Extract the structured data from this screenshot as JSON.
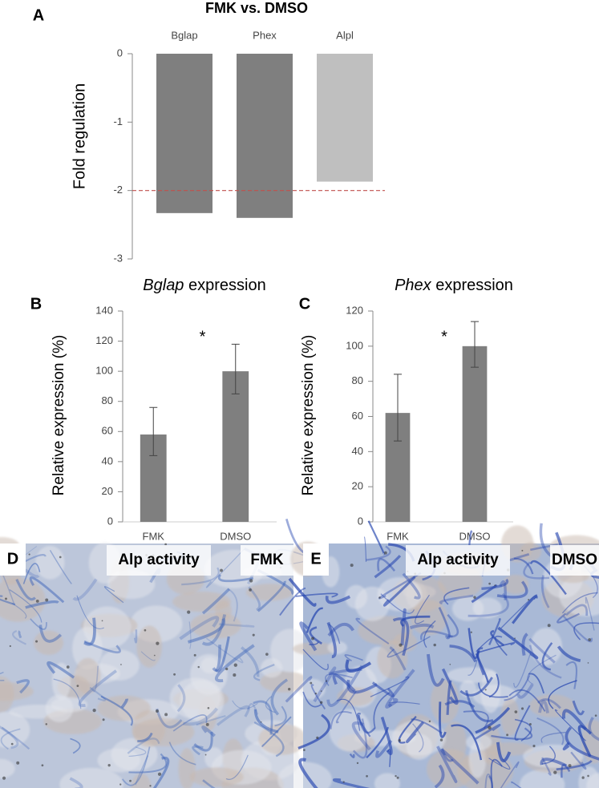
{
  "chart_data": [
    {
      "type": "bar",
      "panel": "A",
      "title": "FMK vs. DMSO",
      "ylabel": "Fold regulation",
      "categories": [
        "Bglap",
        "Phex",
        "Alpl"
      ],
      "values": [
        -2.33,
        -2.4,
        -1.87
      ],
      "colors": [
        "#7f7f7f",
        "#7f7f7f",
        "#bfbfbf"
      ],
      "threshold": -2,
      "threshold_color": "#c0504d",
      "ylim": [
        -3,
        0
      ],
      "yticks": [
        0,
        -1,
        -2,
        -3
      ]
    },
    {
      "type": "bar",
      "panel": "B",
      "title": "Bglap expression",
      "ylabel": "Relative expression (%)",
      "categories": [
        "FMK",
        "DMSO"
      ],
      "values": [
        58,
        100
      ],
      "error_low": [
        14,
        15
      ],
      "error_high": [
        18,
        18
      ],
      "color": "#7f7f7f",
      "annotation": "*",
      "ylim": [
        0,
        140
      ],
      "yticks": [
        0,
        20,
        40,
        60,
        80,
        100,
        120,
        140
      ]
    },
    {
      "type": "bar",
      "panel": "C",
      "title": "Phex expression",
      "ylabel": "Relative expression (%)",
      "categories": [
        "FMK",
        "DMSO"
      ],
      "values": [
        62,
        100
      ],
      "error_low": [
        16,
        12
      ],
      "error_high": [
        22,
        14
      ],
      "color": "#7f7f7f",
      "annotation": "*",
      "ylim": [
        0,
        120
      ],
      "yticks": [
        0,
        20,
        40,
        60,
        80,
        100,
        120
      ]
    }
  ],
  "images": [
    {
      "panel": "D",
      "label": "Alp activity",
      "condition": "FMK"
    },
    {
      "panel": "E",
      "label": "Alp activity",
      "condition": "DMSO"
    }
  ]
}
